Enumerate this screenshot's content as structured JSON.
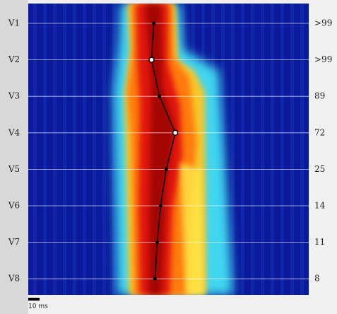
{
  "chart_data": {
    "type": "line",
    "categories": [
      "V1",
      "V2",
      "V3",
      "V4",
      "V5",
      "V6",
      "V7",
      "V8"
    ],
    "series": [
      {
        "color": "#000000",
        "values": [
          111,
          109,
          116,
          130,
          122,
          117,
          114,
          112
        ],
        "marker_colors": [
          "#000000",
          "#ffffff",
          "#000000",
          "#ffffff",
          "#000000",
          "#000000",
          "#000000",
          "#000000"
        ]
      }
    ],
    "right_labels": [
      ">99",
      ">99",
      "89",
      "72",
      "25",
      "14",
      "11",
      "8"
    ],
    "xlim": [
      0,
      248
    ],
    "scale_bar": {
      "value": 10,
      "label": "10 ms"
    }
  }
}
